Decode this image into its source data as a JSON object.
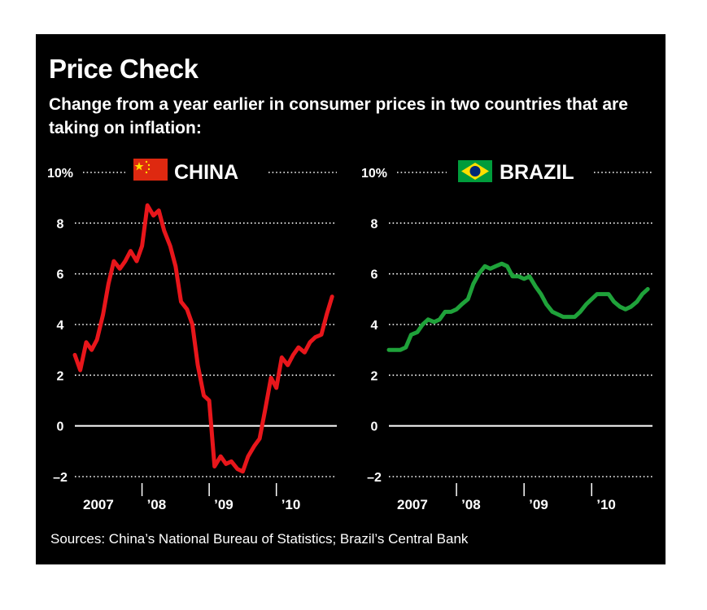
{
  "header": {
    "title": "Price Check",
    "subtitle": "Change from a year earlier in consumer prices in two countries that are taking on inflation:"
  },
  "footer": {
    "sources": "Sources: China’s National Bureau of Statistics; Brazil’s Central Bank"
  },
  "colors": {
    "background": "#000000",
    "text": "#ffffff",
    "china_line": "#e8161b",
    "brazil_line": "#1fa23a",
    "china_flag": "#de2910",
    "china_flag_star": "#ffde00",
    "brazil_flag_green": "#009c3b",
    "brazil_flag_yellow": "#ffdf00",
    "brazil_flag_blue": "#002776"
  },
  "chart_data": [
    {
      "type": "line",
      "title": "CHINA",
      "flag_icon": "china-flag-icon",
      "ylim": [
        -2,
        10
      ],
      "yticks": [
        -2,
        0,
        2,
        4,
        6,
        8,
        10
      ],
      "ytick_labels": [
        "–2",
        "0",
        "2",
        "4",
        "6",
        "8",
        "10%"
      ],
      "xlim": [
        2007.0,
        2010.9
      ],
      "xticks": [
        2007,
        2008,
        2009,
        2010
      ],
      "xtick_labels": [
        "2007",
        "’08",
        "’09",
        "’10"
      ],
      "grid": "dotted",
      "series": [
        {
          "color": "#e8161b",
          "x": [
            2007.0,
            2007.08,
            2007.17,
            2007.25,
            2007.33,
            2007.42,
            2007.5,
            2007.58,
            2007.67,
            2007.75,
            2007.83,
            2007.92,
            2008.0,
            2008.08,
            2008.17,
            2008.25,
            2008.33,
            2008.42,
            2008.5,
            2008.58,
            2008.67,
            2008.75,
            2008.83,
            2008.92,
            2009.0,
            2009.08,
            2009.17,
            2009.25,
            2009.33,
            2009.42,
            2009.5,
            2009.58,
            2009.67,
            2009.75,
            2009.83,
            2009.92,
            2010.0,
            2010.08,
            2010.17,
            2010.25,
            2010.33,
            2010.42,
            2010.5,
            2010.58,
            2010.67,
            2010.75,
            2010.83
          ],
          "values": [
            2.8,
            2.2,
            3.3,
            3.0,
            3.4,
            4.4,
            5.6,
            6.5,
            6.2,
            6.5,
            6.9,
            6.5,
            7.1,
            8.7,
            8.3,
            8.5,
            7.7,
            7.1,
            6.3,
            4.9,
            4.6,
            4.0,
            2.4,
            1.2,
            1.0,
            -1.6,
            -1.2,
            -1.5,
            -1.4,
            -1.7,
            -1.8,
            -1.2,
            -0.8,
            -0.5,
            0.6,
            1.9,
            1.5,
            2.7,
            2.4,
            2.8,
            3.1,
            2.9,
            3.3,
            3.5,
            3.6,
            4.4,
            5.1
          ]
        }
      ]
    },
    {
      "type": "line",
      "title": "BRAZIL",
      "flag_icon": "brazil-flag-icon",
      "ylim": [
        -2,
        10
      ],
      "yticks": [
        -2,
        0,
        2,
        4,
        6,
        8,
        10
      ],
      "ytick_labels": [
        "–2",
        "0",
        "2",
        "4",
        "6",
        "8",
        "10%"
      ],
      "xlim": [
        2007.0,
        2010.9
      ],
      "xticks": [
        2007,
        2008,
        2009,
        2010
      ],
      "xtick_labels": [
        "2007",
        "’08",
        "’09",
        "’10"
      ],
      "grid": "dotted",
      "series": [
        {
          "color": "#1fa23a",
          "x": [
            2007.0,
            2007.08,
            2007.17,
            2007.25,
            2007.33,
            2007.42,
            2007.5,
            2007.58,
            2007.67,
            2007.75,
            2007.83,
            2007.92,
            2008.0,
            2008.08,
            2008.17,
            2008.25,
            2008.33,
            2008.42,
            2008.5,
            2008.58,
            2008.67,
            2008.75,
            2008.83,
            2008.92,
            2009.0,
            2009.08,
            2009.17,
            2009.25,
            2009.33,
            2009.42,
            2009.5,
            2009.58,
            2009.67,
            2009.75,
            2009.83,
            2009.92,
            2010.0,
            2010.08,
            2010.17,
            2010.25,
            2010.33,
            2010.42,
            2010.5,
            2010.58,
            2010.67,
            2010.75,
            2010.83
          ],
          "values": [
            3.0,
            3.0,
            3.0,
            3.1,
            3.6,
            3.7,
            4.0,
            4.2,
            4.1,
            4.2,
            4.5,
            4.5,
            4.6,
            4.8,
            5.0,
            5.6,
            6.0,
            6.3,
            6.2,
            6.3,
            6.4,
            6.3,
            5.9,
            5.9,
            5.8,
            5.9,
            5.5,
            5.2,
            4.8,
            4.5,
            4.4,
            4.3,
            4.3,
            4.3,
            4.5,
            4.8,
            5.0,
            5.2,
            5.2,
            5.2,
            4.9,
            4.7,
            4.6,
            4.7,
            4.9,
            5.2,
            5.4
          ]
        }
      ]
    }
  ]
}
